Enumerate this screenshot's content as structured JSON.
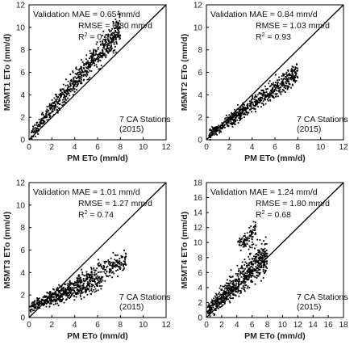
{
  "chart_data": [
    {
      "type": "scatter",
      "xlabel": "PM ETo (mm/d)",
      "ylabel": "M5MT1 ETo (mm/d)",
      "xlim": [
        0,
        12
      ],
      "ylim": [
        0,
        12
      ],
      "xticks": [
        "0",
        "2",
        "4",
        "6",
        "8",
        "10",
        "12"
      ],
      "yticks": [
        "0",
        "2",
        "4",
        "6",
        "8",
        "10",
        "12"
      ],
      "stats": [
        "Validation MAE = 0.65 mm/d",
        "RMSE = 0.80 mm/d",
        "R² = 0.90"
      ],
      "note": [
        "7 CA Stations",
        "(2015)"
      ],
      "reference_line": [
        [
          0,
          0
        ],
        [
          12,
          12
        ]
      ],
      "point_clouds": [
        {
          "x_range": [
            0.2,
            8.0
          ],
          "y_at_x_start": 0.5,
          "y_at_x_end": 10.0,
          "spread": 0.7,
          "count": 700
        }
      ]
    },
    {
      "type": "scatter",
      "xlabel": "PM ETo (mm/d)",
      "ylabel": "M5MT2 ETo (mm/d)",
      "xlim": [
        0,
        12
      ],
      "ylim": [
        0,
        12
      ],
      "xticks": [
        "0",
        "2",
        "4",
        "6",
        "8",
        "10",
        "12"
      ],
      "yticks": [
        "0",
        "2",
        "4",
        "6",
        "8",
        "10",
        "12"
      ],
      "stats": [
        "Validation MAE = 0.84 mm/d",
        "RMSE = 1.03 mm/d",
        "R² = 0.93"
      ],
      "note": [
        "7 CA Stations",
        "(2015)"
      ],
      "reference_line": [
        [
          0,
          0
        ],
        [
          12,
          12
        ]
      ],
      "point_clouds": [
        {
          "x_range": [
            0.2,
            8.0
          ],
          "y_at_x_start": 0.4,
          "y_at_x_end": 6.0,
          "spread": 0.5,
          "count": 650
        }
      ]
    },
    {
      "type": "scatter",
      "xlabel": "PM ETo (mm/d)",
      "ylabel": "M5MT3 ETo (mm/d)",
      "xlim": [
        0,
        12
      ],
      "ylim": [
        0,
        12
      ],
      "xticks": [
        "0",
        "2",
        "4",
        "6",
        "8",
        "10",
        "12"
      ],
      "yticks": [
        "0",
        "2",
        "4",
        "6",
        "8",
        "10",
        "12"
      ],
      "stats": [
        "Validation MAE = 1.01 mm/d",
        "RMSE = 1.27 mm/d",
        "R² = 0.74"
      ],
      "note": [
        "7 CA Stations",
        "(2015)"
      ],
      "reference_line": [
        [
          0,
          0
        ],
        [
          12,
          12
        ]
      ],
      "point_clouds": [
        {
          "x_range": [
            0.1,
            8.5
          ],
          "y_at_x_start": 1.0,
          "y_at_x_end": 5.2,
          "spread": 0.5,
          "count": 450
        },
        {
          "x_range": [
            0.1,
            6.5
          ],
          "y_at_x_start": 0.8,
          "y_at_x_end": 3.2,
          "spread": 0.4,
          "count": 300
        }
      ]
    },
    {
      "type": "scatter",
      "xlabel": "PM ETo (mm/d)",
      "ylabel": "M5MT4 ETo (mm/d)",
      "xlim": [
        0,
        18
      ],
      "ylim": [
        0,
        18
      ],
      "xticks": [
        "0",
        "2",
        "4",
        "6",
        "8",
        "10",
        "12",
        "14",
        "16",
        "18"
      ],
      "yticks": [
        "0",
        "2",
        "4",
        "6",
        "8",
        "10",
        "12",
        "14",
        "16",
        "18"
      ],
      "stats": [
        "Validation MAE = 1.24 mm/d",
        "RMSE = 1.80 mm/d",
        "R² = 0.68"
      ],
      "note": [
        "7 CA Stations",
        "(2015)"
      ],
      "reference_line": [
        [
          0,
          0
        ],
        [
          18,
          18
        ]
      ],
      "point_clouds": [
        {
          "x_range": [
            0.1,
            8.0
          ],
          "y_at_x_start": 0.8,
          "y_at_x_end": 8.5,
          "spread": 1.3,
          "count": 650
        },
        {
          "x_range": [
            4.0,
            6.5
          ],
          "y_at_x_start": 9.5,
          "y_at_x_end": 11.5,
          "spread": 0.8,
          "count": 90
        }
      ]
    }
  ]
}
